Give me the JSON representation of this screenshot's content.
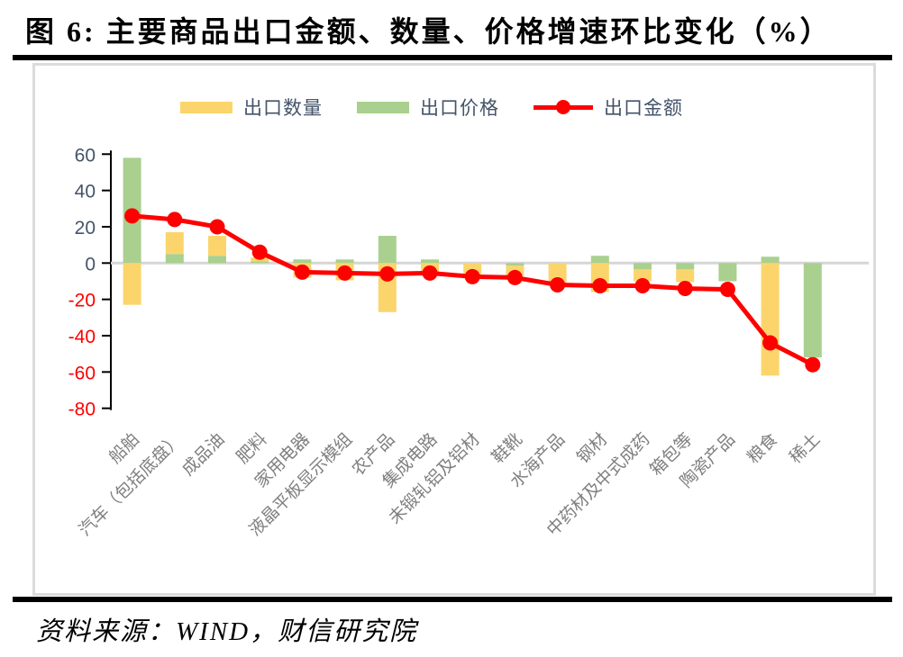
{
  "title": "图 6: 主要商品出口金额、数量、价格增速环比变化（%）",
  "source": "资料来源：WIND，财信研究院",
  "legend": {
    "items": [
      {
        "label": "出口数量",
        "type": "bar",
        "color": "#FBD56C"
      },
      {
        "label": "出口价格",
        "type": "bar",
        "color": "#A9D08E"
      },
      {
        "label": "出口金额",
        "type": "line",
        "color": "#FF0000"
      }
    ]
  },
  "colors": {
    "quantity_bar": "#FBD56C",
    "price_bar": "#A9D08E",
    "amount_line": "#FF0000",
    "axis": "#000000",
    "tick_label_positive": "#44546A",
    "tick_label_negative": "#FF0000",
    "zero_gridline": "#D6D6D6",
    "category_label": "#7F7F7F",
    "frame_border": "#DBDBDB"
  },
  "chart_data": {
    "type": "bar",
    "subtype": "stacked columns with line overlay",
    "title": "主要商品出口金额、数量、价格增速环比变化（%）",
    "xlabel": "",
    "ylabel": "",
    "ylim": [
      -80,
      60
    ],
    "ytick_interval": 20,
    "yticks": [
      60,
      40,
      20,
      0,
      -20,
      -40,
      -60,
      -80
    ],
    "grid": "zero line only",
    "legend_position": "top",
    "stack_order": [
      "出口价格",
      "出口数量"
    ],
    "categories": [
      "船舶",
      "汽车（包括底盘）",
      "成品油",
      "肥料",
      "家用电器",
      "液晶平板显示模组",
      "农产品",
      "集成电路",
      "未锻轧铝及铝材",
      "鞋靴",
      "水海产品",
      "钢材",
      "中药材及中式成药",
      "箱包等",
      "陶瓷产品",
      "粮食",
      "稀土"
    ],
    "series": [
      {
        "name": "出口数量",
        "type": "bar",
        "values": [
          -23,
          12,
          11,
          2,
          -8,
          -9.5,
          -27,
          -6.5,
          -7,
          -5.5,
          -12,
          -16,
          -6.5,
          -7,
          0,
          -62,
          0
        ]
      },
      {
        "name": "出口价格",
        "type": "bar",
        "values": [
          58,
          5,
          4,
          1,
          2,
          2,
          15,
          2,
          0,
          -1.5,
          0,
          4,
          -3.5,
          -3.5,
          -10,
          3.5,
          -52
        ]
      },
      {
        "name": "出口金额",
        "type": "line",
        "values": [
          26,
          24,
          20,
          6,
          -5,
          -5.5,
          -6,
          -5.5,
          -7.5,
          -8,
          -12,
          -12.5,
          -12.5,
          -14,
          -14.5,
          -44,
          -56
        ]
      }
    ]
  }
}
